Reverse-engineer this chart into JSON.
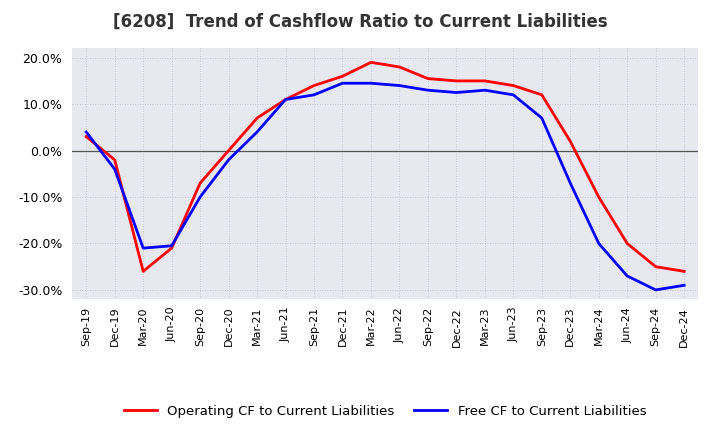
{
  "title": "[6208]  Trend of Cashflow Ratio to Current Liabilities",
  "x_labels": [
    "Sep-19",
    "Dec-19",
    "Mar-20",
    "Jun-20",
    "Sep-20",
    "Dec-20",
    "Mar-21",
    "Jun-21",
    "Sep-21",
    "Dec-21",
    "Mar-22",
    "Jun-22",
    "Sep-22",
    "Dec-22",
    "Mar-23",
    "Jun-23",
    "Sep-23",
    "Dec-23",
    "Mar-24",
    "Jun-24",
    "Sep-24",
    "Dec-24"
  ],
  "operating_cf": [
    0.03,
    -0.02,
    -0.26,
    -0.21,
    -0.07,
    0.0,
    0.07,
    0.11,
    0.14,
    0.16,
    0.19,
    0.18,
    0.155,
    0.15,
    0.15,
    0.14,
    0.12,
    0.02,
    -0.1,
    -0.2,
    -0.25,
    -0.26
  ],
  "free_cf": [
    0.04,
    -0.04,
    -0.21,
    -0.205,
    -0.1,
    -0.02,
    0.04,
    0.11,
    0.12,
    0.145,
    0.145,
    0.14,
    0.13,
    0.125,
    0.13,
    0.12,
    0.07,
    -0.07,
    -0.2,
    -0.27,
    -0.3,
    -0.29
  ],
  "operating_color": "#ff0000",
  "free_color": "#0000ff",
  "ylim": [
    -0.32,
    0.22
  ],
  "yticks": [
    -0.3,
    -0.2,
    -0.1,
    0.0,
    0.1,
    0.2
  ],
  "plot_bg_color": "#e8e8f0",
  "outer_bg_color": "#ffffff",
  "grid_color": "#bbbbcc",
  "legend_op": "Operating CF to Current Liabilities",
  "legend_free": "Free CF to Current Liabilities",
  "title_color": "#333333"
}
